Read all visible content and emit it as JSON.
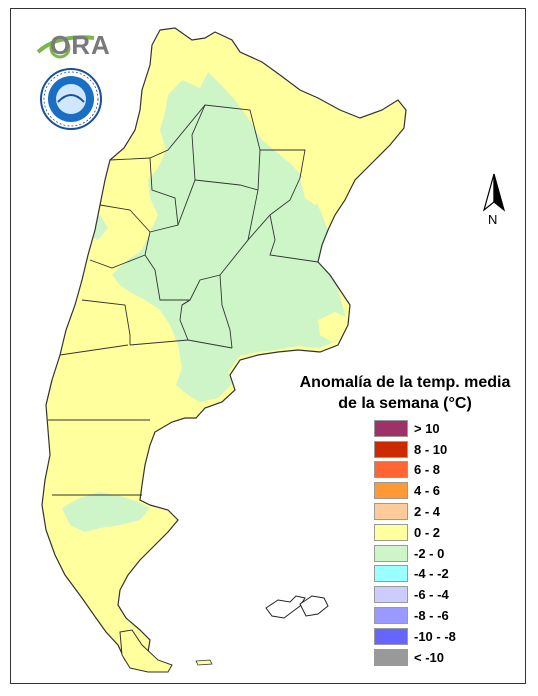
{
  "title": {
    "line1": "Anomalía de la temp. media",
    "line2": "de la semana (°C)"
  },
  "logo": {
    "text": "ORA"
  },
  "seal": {
    "name": "national-meteorological-service-seal"
  },
  "north_arrow": {
    "label": "N"
  },
  "colors": {
    "warm_0_2": "#ffff9e",
    "cool_m2_0": "#cdf5c8",
    "border": "#333333"
  },
  "legend": {
    "items": [
      {
        "label": "> 10",
        "color": "#9e3266"
      },
      {
        "label": "8 - 10",
        "color": "#cc2a00"
      },
      {
        "label": "6 - 8",
        "color": "#ff6633"
      },
      {
        "label": "4 - 6",
        "color": "#ff9933"
      },
      {
        "label": "2 - 4",
        "color": "#ffcc99"
      },
      {
        "label": "0 - 2",
        "color": "#ffff9e"
      },
      {
        "label": "-2 - 0",
        "color": "#cdf5c8"
      },
      {
        "label": "-4 - -2",
        "color": "#99ffff"
      },
      {
        "label": "-6 - -4",
        "color": "#ccccff"
      },
      {
        "label": "-8 - -6",
        "color": "#9999ff"
      },
      {
        "label": "-10 - -8",
        "color": "#6666ff"
      },
      {
        "label": "< -10",
        "color": "#999999"
      }
    ]
  }
}
